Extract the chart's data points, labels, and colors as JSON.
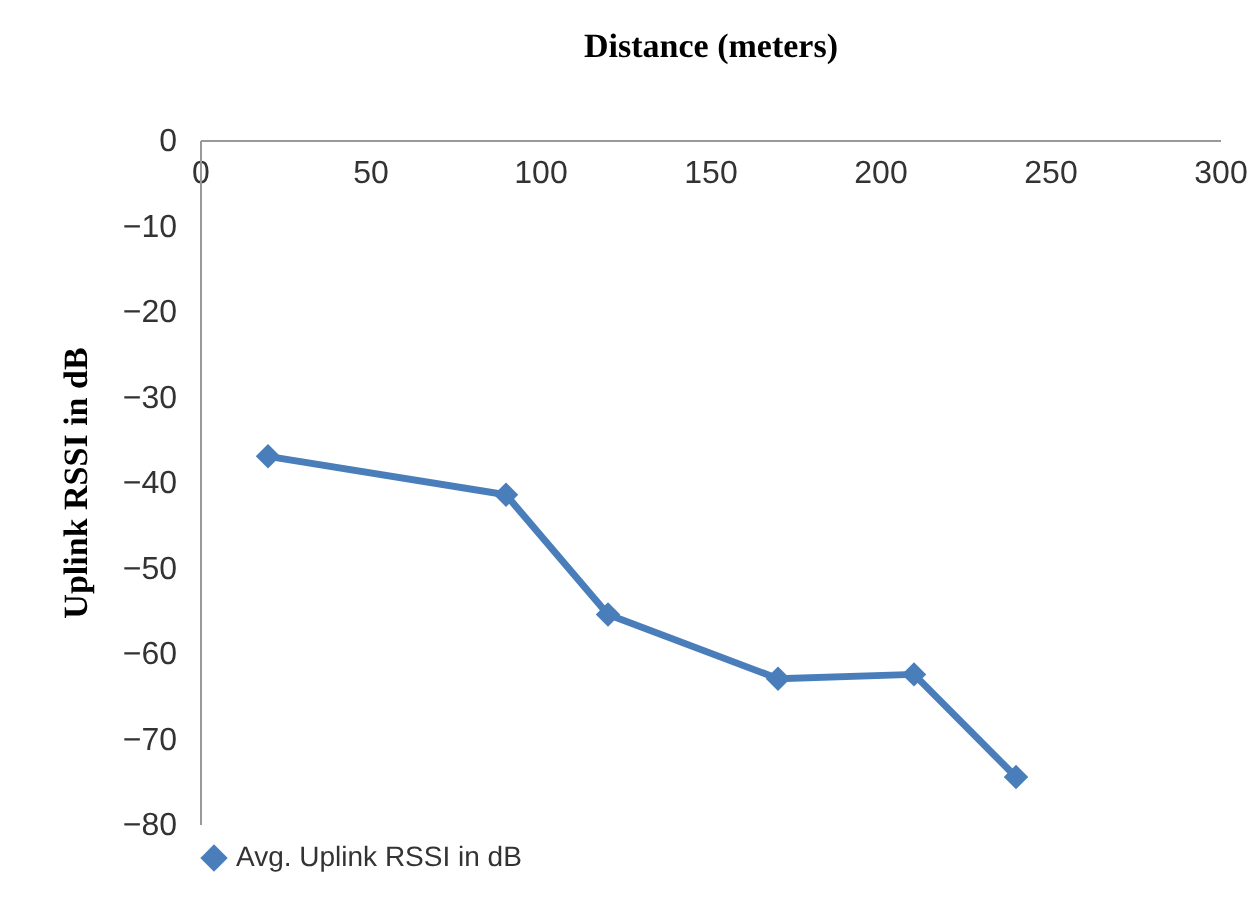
{
  "chart_data": {
    "type": "line",
    "xlabel": "Distance (meters)",
    "ylabel": "Uplink RSSI in dB",
    "x": [
      20,
      90,
      120,
      170,
      210,
      240
    ],
    "series": [
      {
        "name": "Avg. Uplink RSSI in dB",
        "color": "#4a7ebb",
        "values": [
          -37,
          -41.5,
          -55.5,
          -63,
          -62.5,
          -74.5
        ]
      }
    ],
    "xlim": [
      0,
      300
    ],
    "xticks": [
      0,
      50,
      100,
      150,
      200,
      250,
      300
    ],
    "ylim": [
      -80,
      0
    ],
    "yticks": [
      -80,
      -70,
      -60,
      -50,
      -40,
      -30,
      -20,
      -10,
      0
    ],
    "grid": false,
    "legend": "bottom",
    "marker": "diamond",
    "line_style": "solid"
  }
}
